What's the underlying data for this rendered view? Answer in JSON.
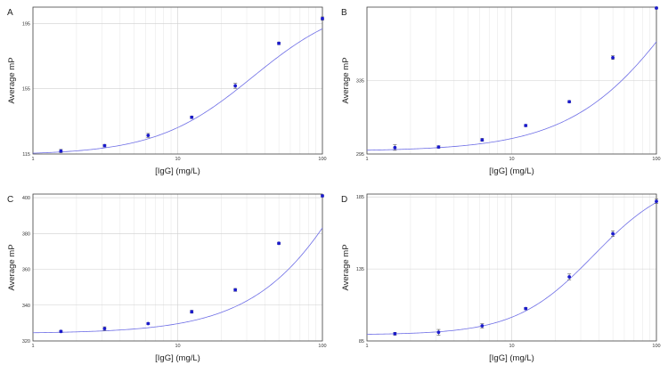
{
  "colors": {
    "curve": "#6e6ee6",
    "point": "#1a1acc",
    "error": "#555555"
  },
  "chart_data": [
    {
      "type": "scatter",
      "panel": "A",
      "xlabel": "[IgG] (mg/L)",
      "ylabel": "Average mP",
      "xscale": "log",
      "xlim": [
        1,
        100
      ],
      "ylim": [
        115,
        205
      ],
      "xticks": [
        "1",
        "10",
        "100"
      ],
      "yticks": [
        "115",
        "155",
        "195"
      ],
      "grid": true,
      "legend": "none",
      "series": [
        {
          "x": [
            1.56,
            3.125,
            6.25,
            12.5,
            25,
            50,
            100
          ],
          "y": [
            116.8,
            120.1,
            126.4,
            137.5,
            156.8,
            182.8,
            198.0
          ],
          "err": [
            1.0,
            0.8,
            1.2,
            0.8,
            1.5,
            0.8,
            1.0
          ],
          "fit": {
            "model": "4PL",
            "bottom": 114.5,
            "top": 210,
            "ec50": 33,
            "hill": 1.3
          }
        }
      ]
    },
    {
      "type": "scatter",
      "panel": "B",
      "xlabel": "[IgG] (mg/L)",
      "ylabel": "Average mP",
      "xscale": "log",
      "xlim": [
        1,
        100
      ],
      "ylim": [
        295,
        375
      ],
      "xticks": [
        "1",
        "10",
        "100"
      ],
      "yticks": [
        "295",
        "335"
      ],
      "grid": true,
      "legend": "none",
      "series": [
        {
          "x": [
            1.56,
            3.125,
            6.25,
            12.5,
            25,
            50,
            100
          ],
          "y": [
            298.5,
            298.8,
            302.7,
            310.5,
            323.5,
            347.5,
            374.5
          ],
          "err": [
            1.5,
            0.7,
            0.8,
            0.6,
            0.6,
            1.0,
            0.5
          ],
          "fit": {
            "model": "4PL",
            "bottom": 296.5,
            "top": 470,
            "ec50": 180,
            "hill": 1.1
          }
        }
      ]
    },
    {
      "type": "scatter",
      "panel": "C",
      "xlabel": "[IgG] (mg/L)",
      "ylabel": "Average mP",
      "xscale": "log",
      "xlim": [
        1,
        100
      ],
      "ylim": [
        320,
        402
      ],
      "xticks": [
        "1",
        "10",
        "100"
      ],
      "yticks": [
        "320",
        "340",
        "360",
        "380",
        "400"
      ],
      "grid": true,
      "legend": "none",
      "series": [
        {
          "x": [
            1.56,
            3.125,
            6.25,
            12.5,
            25,
            50,
            100
          ],
          "y": [
            325.3,
            326.9,
            329.7,
            336.3,
            348.5,
            374.5,
            401.0
          ],
          "err": [
            0.6,
            1.0,
            0.5,
            0.8,
            0.8,
            0.6,
            0.6
          ],
          "fit": {
            "model": "4PL",
            "bottom": 324.2,
            "top": 560,
            "ec50": 260,
            "hill": 1.15
          }
        }
      ]
    },
    {
      "type": "scatter",
      "panel": "D",
      "xlabel": "[IgG] (mg/L)",
      "ylabel": "Average mP",
      "xscale": "log",
      "xlim": [
        1,
        100
      ],
      "ylim": [
        85,
        187
      ],
      "xticks": [
        "1",
        "10",
        "100"
      ],
      "yticks": [
        "85",
        "135",
        "185"
      ],
      "grid": true,
      "legend": "none",
      "series": [
        {
          "x": [
            1.56,
            3.125,
            6.25,
            12.5,
            25,
            50,
            100
          ],
          "y": [
            90.0,
            91.0,
            95.5,
            107.5,
            129.5,
            159.5,
            182.0
          ],
          "err": [
            1.0,
            2.0,
            1.5,
            0.8,
            2.0,
            2.0,
            1.5
          ],
          "fit": {
            "model": "4PL",
            "bottom": 89.3,
            "top": 200,
            "ec50": 37,
            "hill": 1.6
          }
        }
      ]
    }
  ]
}
